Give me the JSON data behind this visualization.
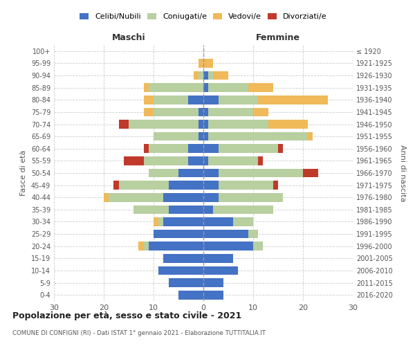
{
  "age_groups": [
    "0-4",
    "5-9",
    "10-14",
    "15-19",
    "20-24",
    "25-29",
    "30-34",
    "35-39",
    "40-44",
    "45-49",
    "50-54",
    "55-59",
    "60-64",
    "65-69",
    "70-74",
    "75-79",
    "80-84",
    "85-89",
    "90-94",
    "95-99",
    "100+"
  ],
  "birth_years": [
    "2016-2020",
    "2011-2015",
    "2006-2010",
    "2001-2005",
    "1996-2000",
    "1991-1995",
    "1986-1990",
    "1981-1985",
    "1976-1980",
    "1971-1975",
    "1966-1970",
    "1961-1965",
    "1956-1960",
    "1951-1955",
    "1946-1950",
    "1941-1945",
    "1936-1940",
    "1931-1935",
    "1926-1930",
    "1921-1925",
    "≤ 1920"
  ],
  "colors": {
    "celibi": "#4472c4",
    "coniugati": "#b8cfa0",
    "vedovi": "#f0b95a",
    "divorziati": "#c0392b"
  },
  "maschi": {
    "celibi": [
      5,
      7,
      9,
      8,
      11,
      10,
      8,
      7,
      8,
      7,
      5,
      3,
      3,
      1,
      1,
      1,
      3,
      0,
      0,
      0,
      0
    ],
    "coniugati": [
      0,
      0,
      0,
      0,
      1,
      0,
      1,
      7,
      11,
      10,
      6,
      9,
      8,
      9,
      14,
      9,
      7,
      11,
      1,
      0,
      0
    ],
    "vedovi": [
      0,
      0,
      0,
      0,
      1,
      0,
      1,
      0,
      1,
      0,
      0,
      0,
      0,
      0,
      0,
      2,
      2,
      1,
      1,
      1,
      0
    ],
    "divorziati": [
      0,
      0,
      0,
      0,
      0,
      0,
      0,
      0,
      0,
      1,
      0,
      4,
      1,
      0,
      2,
      0,
      0,
      0,
      0,
      0,
      0
    ]
  },
  "femmine": {
    "celibi": [
      4,
      4,
      7,
      6,
      10,
      9,
      6,
      2,
      3,
      3,
      3,
      1,
      3,
      1,
      1,
      1,
      3,
      1,
      1,
      0,
      0
    ],
    "coniugati": [
      0,
      0,
      0,
      0,
      2,
      2,
      4,
      12,
      13,
      11,
      17,
      10,
      12,
      20,
      12,
      9,
      8,
      8,
      1,
      0,
      0
    ],
    "vedovi": [
      0,
      0,
      0,
      0,
      0,
      0,
      0,
      0,
      0,
      0,
      0,
      0,
      0,
      1,
      8,
      3,
      14,
      5,
      3,
      2,
      0
    ],
    "divorziati": [
      0,
      0,
      0,
      0,
      0,
      0,
      0,
      0,
      0,
      1,
      3,
      1,
      1,
      0,
      0,
      0,
      0,
      0,
      0,
      0,
      0
    ]
  },
  "title": "Popolazione per età, sesso e stato civile - 2021",
  "subtitle": "COMUNE DI CONFIGNI (RI) - Dati ISTAT 1° gennaio 2021 - Elaborazione TUTTITALIA.IT",
  "xlabel_left": "Maschi",
  "xlabel_right": "Femmine",
  "ylabel_left": "Fasce di età",
  "ylabel_right": "Anni di nascita",
  "xlim": 30,
  "bg_color": "#ffffff",
  "grid_color": "#cccccc"
}
